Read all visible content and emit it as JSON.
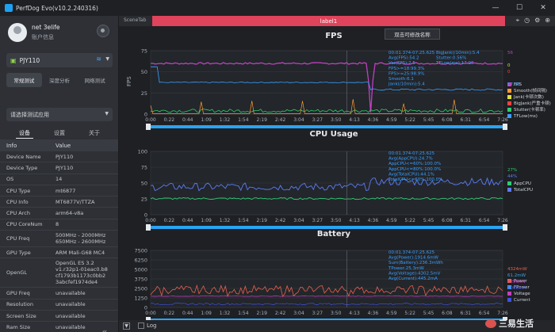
{
  "window": {
    "title": "PerfDog Evo(v10.2.240316)",
    "buttons": [
      "—",
      "☐",
      "✕"
    ]
  },
  "user": {
    "name": "net 3elife",
    "info": "账户信息"
  },
  "device": {
    "name": "PJY110"
  },
  "test_tabs": [
    "常规测试",
    "深度分析",
    "网络测试"
  ],
  "app_select": {
    "placeholder": "请选择测试应用"
  },
  "info_tabs": [
    "设备",
    "设置",
    "关于"
  ],
  "info_header": {
    "key": "Info",
    "value": "Value"
  },
  "info_rows": [
    {
      "k": "Device Name",
      "v": "PJY110"
    },
    {
      "k": "Device Type",
      "v": "PJY110"
    },
    {
      "k": "OS",
      "v": "14"
    },
    {
      "k": "CPU Type",
      "v": "mt6877"
    },
    {
      "k": "CPU Info",
      "v": "MT6877V/TTZA"
    },
    {
      "k": "CPU Arch",
      "v": "arm64-v8a"
    },
    {
      "k": "CPU CoreNum",
      "v": "8"
    },
    {
      "k": "CPU Freq",
      "v": "500MHz - 2000MHz\n650MHz - 2600MHz"
    },
    {
      "k": "GPU Type",
      "v": "ARM Mali-G68 MC4"
    },
    {
      "k": "OpenGL",
      "v": "OpenGL ES 3.2\nv1.r32p1-01eac0.b8\ncf1793b1173c0bb2\n3abcfef1974de4"
    },
    {
      "k": "GPU Freq",
      "v": "unavailable"
    },
    {
      "k": "Resolution",
      "v": "unavailable"
    },
    {
      "k": "Screen Size",
      "v": "unavailable"
    },
    {
      "k": "Ram Size",
      "v": "unavailable"
    },
    {
      "k": "IMK Threshold",
      "v": "unavailable"
    }
  ],
  "scene": {
    "tab": "SceneTab",
    "label": "label1"
  },
  "tooltip": "双击可修改名称",
  "bottom": {
    "log_label": "Log"
  },
  "watermark": "三易生活",
  "colors": {
    "fps": "#c040c0",
    "cpu_app": "#2ecc71",
    "cpu_total": "#5b7cf5",
    "power": "#e8604c",
    "accent": "#2aa4f4"
  },
  "chart_data": [
    {
      "type": "line",
      "title": "FPS",
      "ylabel": "FPS",
      "ylim": [
        0,
        75
      ],
      "yticks": [
        0,
        25,
        50,
        75
      ],
      "xticks": [
        "0:00",
        "0:22",
        "0:44",
        "1:09",
        "1:32",
        "1:54",
        "2:19",
        "2:42",
        "3:04",
        "3:27",
        "3:50",
        "4:13",
        "4:36",
        "4:59",
        "5:22",
        "5:45",
        "6:08",
        "6:31",
        "6:54",
        "7:26"
      ],
      "overlay_text": [
        "00:01.374-07:25.625",
        "Avg(FPS):54.2",
        "Var(FPS):2.5",
        "FPS>=18:99.3%",
        "FPS>=25:98.9%",
        "Smooth:6.1",
        "Jank(/10min):5.4",
        "BigJank(/10min):5.4",
        "Stutter:0.56%",
        "TFLow(ms):17.90"
      ],
      "legend": [
        {
          "name": "FPS",
          "value": "56"
        },
        {
          "name": "Smooth(帧间隔)",
          "value": ""
        },
        {
          "name": "Jank(卡顿次数)",
          "value": "0"
        },
        {
          "name": "BigJank(严重卡顿)",
          "value": "0"
        },
        {
          "name": "Stutter(卡顿率)",
          "value": ""
        },
        {
          "name": "TFLow(ms)",
          "value": "17.93"
        }
      ],
      "series": [
        {
          "name": "FPS",
          "approx": "~59 steady, drop near 4:00"
        },
        {
          "name": "Smooth(帧间隔)",
          "approx": "~37"
        },
        {
          "name": "TFLow(ms)",
          "approx": "~2-5"
        }
      ]
    },
    {
      "type": "line",
      "title": "CPU Usage",
      "ylabel": "%",
      "ylim": [
        0,
        100
      ],
      "yticks": [
        0,
        25,
        50,
        75,
        100
      ],
      "xticks": [
        "0:00",
        "0:22",
        "0:44",
        "1:09",
        "1:32",
        "1:54",
        "2:19",
        "2:42",
        "3:04",
        "3:27",
        "3:50",
        "4:13",
        "4:36",
        "4:59",
        "5:22",
        "5:45",
        "6:08",
        "6:31",
        "6:54",
        "7:26"
      ],
      "overlay_text": [
        "00:01.374-07:25.625",
        "Avg(AppCPU):24.7%",
        "AppCPU<=60%:100.0%",
        "AppCPU<=80%:100.0%",
        "Avg(TotalCPU):44.1%",
        "TotalCPU<=60%:100.0%"
      ],
      "legend": [
        {
          "name": "AppCPU",
          "value": "27%"
        },
        {
          "name": "TotalCPU",
          "value": "44%"
        }
      ],
      "series": [
        {
          "name": "AppCPU",
          "approx": "~23-26%"
        },
        {
          "name": "TotalCPU",
          "approx": "~40-48%, rising to ~55% after 4:13"
        }
      ]
    },
    {
      "type": "line",
      "title": "Battery",
      "ylabel": "mW",
      "ylim": [
        0,
        7500
      ],
      "yticks": [
        0,
        1250,
        2500,
        3750,
        5000,
        6250,
        7500
      ],
      "xticks": [
        "0:00",
        "0:22",
        "0:44",
        "1:09",
        "1:32",
        "1:54",
        "2:19",
        "2:42",
        "3:04",
        "3:27",
        "3:50",
        "4:13",
        "4:36",
        "4:59",
        "5:22",
        "5:45",
        "6:08",
        "6:31",
        "6:54",
        "7:26"
      ],
      "overlay_text": [
        "00:01.374-07:25.625",
        "Avg(Power):1914.6mW",
        "Sum(Battery):236.3mWh",
        "TPower:25.3mW",
        "Avg(Voltage):4302.5mV",
        "Avg(Current):445.2mA"
      ],
      "legend": [
        {
          "name": "Power",
          "value": "4324mW"
        },
        {
          "name": "FPower",
          "value": "61.2mW"
        },
        {
          "name": "Voltage",
          "value": "4296mV"
        },
        {
          "name": "Current",
          "value": "1006mA"
        }
      ],
      "series": [
        {
          "name": "Power",
          "approx": "~1800-2200mW, noisy"
        },
        {
          "name": "Voltage",
          "approx": "~4300mV"
        }
      ]
    }
  ]
}
